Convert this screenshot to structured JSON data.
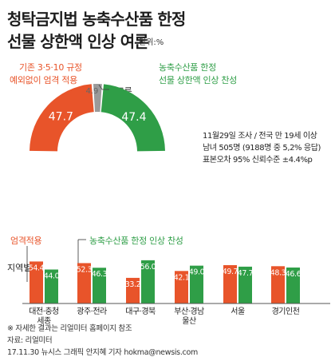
{
  "title_line1": "청탁금지법 농축수산품 한정",
  "title_line2": "선물 상한액 인상 여론",
  "unit": "단위:%",
  "survey": {
    "line1": "11월29일 조사 / 전국 만 19세 이상",
    "line2": "남녀 505명 (9188명 중 5,2% 응답)",
    "line3": "표본오차 95% 신뢰수준 ±4.4%p"
  },
  "footnote": "※ 자세한 결과는 리얼미터 홈페이지 참조",
  "source": "자료: 리얼미터",
  "credit": "17.11.30 뉴시스 그래픽 안지혜 기자 hokma@newsis.com",
  "colors": {
    "strict": "#e8542a",
    "raise": "#2f9e47",
    "unknown": "#9a9a9a"
  },
  "chart_data": [
    {
      "type": "pie",
      "title": "",
      "categories": [
        "기존 3·5·10 규정 예외없이 엄격 적용",
        "잘모름",
        "농축수산품 한정 선물 상한액 인상 찬성"
      ],
      "label_lines": {
        "strict": [
          "기존 3·5·10 규정",
          "예외없이 엄격 적용"
        ],
        "unknown": [
          "잘모름"
        ],
        "raise": [
          "농축수산품 한정",
          "선물 상한액 인상 찬성"
        ]
      },
      "values": [
        47.7,
        4.9,
        47.4
      ],
      "value_labels": [
        "47.7",
        "4.9",
        "47.4"
      ],
      "colors": [
        "#e8542a",
        "#9a9a9a",
        "#2f9e47"
      ],
      "style": "semicircle-donut"
    },
    {
      "type": "bar",
      "title": "",
      "category_header": "지역별",
      "categories": [
        "대전·충청 세종",
        "광주·전라",
        "대구·경북",
        "부산·경남 울산",
        "서울",
        "경기인천"
      ],
      "category_lines": [
        [
          "대전·충청",
          "세종"
        ],
        [
          "광주·전라"
        ],
        [
          "대구·경북"
        ],
        [
          "부산·경남",
          "울산"
        ],
        [
          "서울"
        ],
        [
          "경기인천"
        ]
      ],
      "series": [
        {
          "name": "엄격적용",
          "values": [
            54.4,
            52.3,
            33.2,
            42.1,
            49.7,
            48.3
          ],
          "labels": [
            "54.4",
            "52.3",
            "33.2",
            "42.1",
            "49.7",
            "48.3"
          ],
          "color": "#e8542a"
        },
        {
          "name": "농축수산품 한정 인상 찬성",
          "values": [
            44.0,
            46.3,
            56.0,
            49.0,
            47.7,
            46.6
          ],
          "labels": [
            "44.0",
            "46.3",
            "56.0",
            "49.0",
            "47.7",
            "46.6"
          ],
          "color": "#2f9e47"
        }
      ],
      "ylim": [
        0,
        60
      ],
      "grid": false
    }
  ]
}
